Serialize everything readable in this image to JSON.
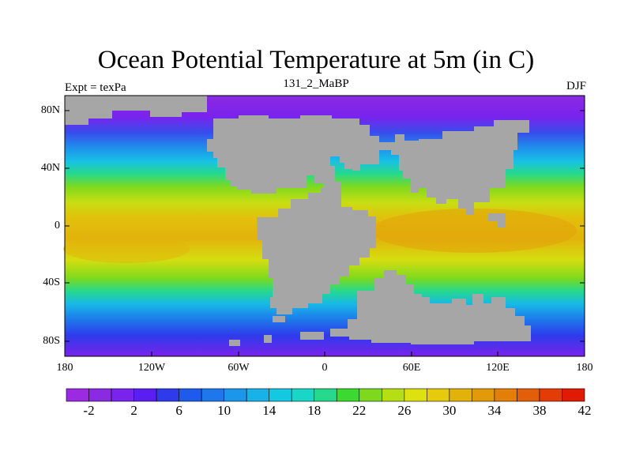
{
  "map": {
    "title": "Ocean Potential Temperature at 5m (in C)",
    "left_string": "Expt = texPa",
    "center_string": "131_2_MaBP",
    "right_string": "DJF",
    "lat_labels": [
      "80N",
      "40N",
      "0",
      "40S",
      "80S"
    ],
    "lon_labels": [
      "180",
      "120W",
      "60W",
      "0",
      "60E",
      "120E",
      "180"
    ],
    "land_color": "#A6A6A6",
    "colorbar": {
      "labels": [
        "-2",
        "2",
        "6",
        "10",
        "14",
        "18",
        "22",
        "26",
        "30",
        "34",
        "38",
        "42"
      ],
      "colors": [
        "#9B2AE0",
        "#8A2BE2",
        "#7A23EC",
        "#5A1FF0",
        "#2E3BEB",
        "#1E5AEB",
        "#1E78EB",
        "#1B96EB",
        "#18B2E8",
        "#15C8E2",
        "#19D6C8",
        "#26D98C",
        "#3ED832",
        "#7ED91E",
        "#B5DE14",
        "#DDE10F",
        "#E6CA0E",
        "#E2B10C",
        "#E29A0B",
        "#E37E09",
        "#E35E08",
        "#E33C06",
        "#E01A05"
      ]
    }
  }
}
